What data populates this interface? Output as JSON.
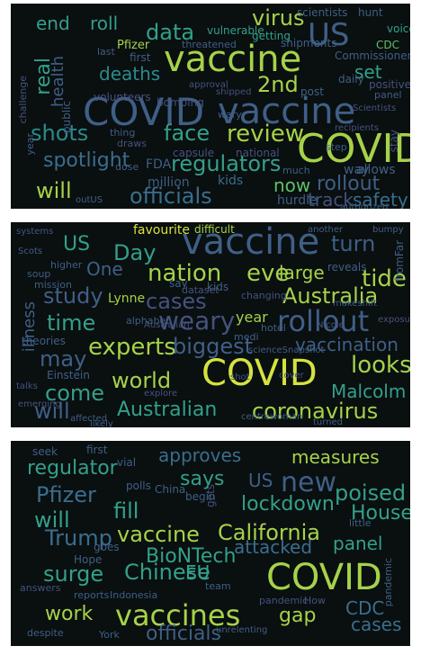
{
  "palette": {
    "background": "#0a0f0f",
    "yellow": "#d5e23f",
    "lime": "#a6d24a",
    "green": "#5cc06a",
    "teal": "#33a08b",
    "cyan": "#2a8b8d",
    "blue": "#3a6e8e",
    "slate": "#3f5f87",
    "indigo": "#45527f",
    "purple": "#4a3a78"
  },
  "clouds": [
    {
      "words": [
        "COVID",
        "vaccine",
        "COVID",
        "vaccine",
        "US",
        "virus",
        "data",
        "end",
        "roll",
        "review",
        "face",
        "shots",
        "regulators",
        "officials",
        "will",
        "rollout",
        "now",
        "track",
        "safety",
        "spotlight",
        "deaths",
        "2nd",
        "health",
        "real",
        "set",
        "FDA",
        "million",
        "kids",
        "hurdle",
        "way",
        "allows",
        "capsule",
        "national",
        "post",
        "bombing",
        "volunteers",
        "Pfizer",
        "CDC",
        "voice",
        "hunt",
        "scientists",
        "vulnerable",
        "getting",
        "shipments",
        "Commissioner",
        "daily",
        "first",
        "public",
        "year",
        "challenge",
        "much",
        "thing",
        "draws",
        "last",
        "step",
        "wary",
        "threatened",
        "panel",
        "authorized",
        "recipients",
        "outUS",
        "approval",
        "Scientists",
        "shipped",
        "stay",
        "positive",
        "dose"
      ]
    },
    {
      "words": [
        "vaccine",
        "COVID",
        "Australia",
        "nation",
        "eve",
        "Day",
        "US",
        "turn",
        "rollout",
        "cases",
        "experts",
        "biggest",
        "weary",
        "study",
        "time",
        "may",
        "come",
        "will",
        "world",
        "Australian",
        "coronavirus",
        "looks",
        "vaccination",
        "Malcolm",
        "large",
        "tide",
        "favourite",
        "One",
        "year",
        "illness",
        "Lynne",
        "difficult",
        "Einstein",
        "theories",
        "say",
        "kids",
        "reveals",
        "fromFar",
        "higher",
        "soup",
        "mission",
        "alphabet",
        "medi",
        "hotel",
        "changing",
        "dataset",
        "scienceSnapshot",
        "centrewoman",
        "turned",
        "affected",
        "likely",
        "talks",
        "explore",
        "makeshift",
        "systems",
        "another",
        "bumpy",
        "Scots",
        "emerging",
        "Australian",
        "Nicole",
        "exposure",
        "cover",
        "shot"
      ]
    },
    {
      "words": [
        "COVID",
        "vaccines",
        "regulator",
        "approves",
        "measures",
        "new",
        "Pfizer",
        "says",
        "US",
        "lockdown",
        "poised",
        "fill",
        "will",
        "vaccine",
        "California",
        "House",
        "Trump",
        "attacked",
        "panel",
        "BioNTech",
        "surge",
        "Chinese",
        "EU",
        "work",
        "gap",
        "officials",
        "CDC",
        "cases",
        "reports",
        "Indonesia",
        "team",
        "pandemic",
        "How",
        "seek",
        "first",
        "vial",
        "polls",
        "China",
        "begin",
        "gets",
        "Hope",
        "goes",
        "answers",
        "despite",
        "York",
        "unrelenting",
        "little",
        "pandemic"
      ]
    }
  ]
}
